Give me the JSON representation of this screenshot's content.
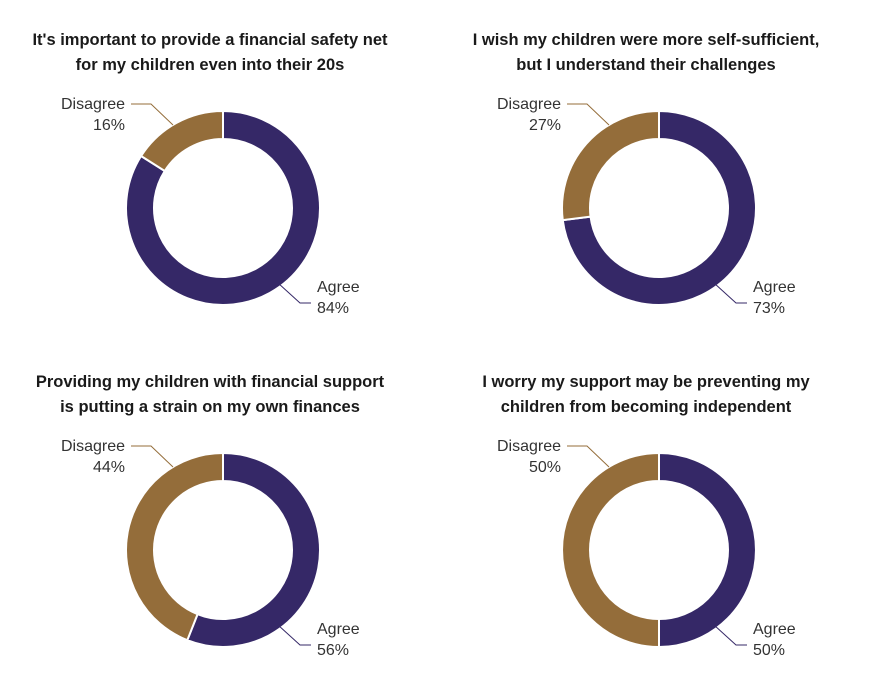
{
  "colors": {
    "agree": "#352867",
    "disagree": "#946d3a",
    "leader_agree": "#352867",
    "leader_disagree": "#946d3a"
  },
  "chart_data": [
    {
      "type": "pie",
      "donut": true,
      "title_lines": [
        "It's important to provide a financial safety net",
        "for my children even into their 20s"
      ],
      "slices": [
        {
          "label": "Agree",
          "value": 84,
          "value_label": "84%"
        },
        {
          "label": "Disagree",
          "value": 16,
          "value_label": "16%"
        }
      ]
    },
    {
      "type": "pie",
      "donut": true,
      "title_lines": [
        "I wish my children were more self-sufficient,",
        "but I understand their challenges"
      ],
      "slices": [
        {
          "label": "Agree",
          "value": 73,
          "value_label": "73%"
        },
        {
          "label": "Disagree",
          "value": 27,
          "value_label": "27%"
        }
      ]
    },
    {
      "type": "pie",
      "donut": true,
      "title_lines": [
        "Providing my children with financial support",
        "is putting a strain on my own finances"
      ],
      "slices": [
        {
          "label": "Agree",
          "value": 56,
          "value_label": "56%"
        },
        {
          "label": "Disagree",
          "value": 44,
          "value_label": "44%"
        }
      ]
    },
    {
      "type": "pie",
      "donut": true,
      "title_lines": [
        "I worry my support may be preventing my",
        "children from becoming independent"
      ],
      "slices": [
        {
          "label": "Agree",
          "value": 50,
          "value_label": "50%"
        },
        {
          "label": "Disagree",
          "value": 50,
          "value_label": "50%"
        }
      ]
    }
  ]
}
